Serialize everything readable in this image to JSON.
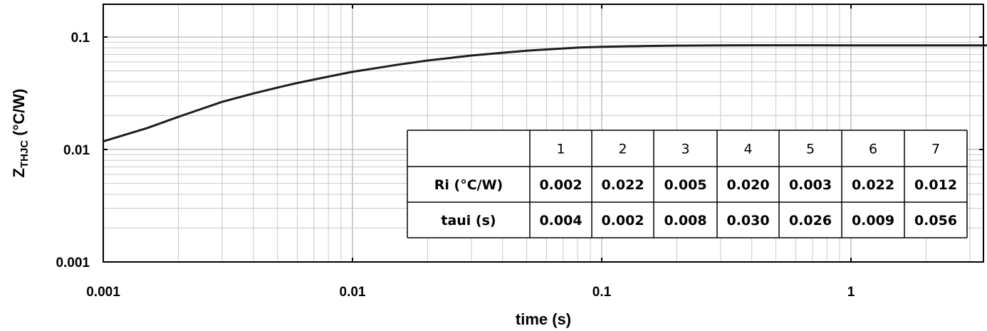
{
  "chart_data": {
    "type": "line",
    "x_scale": "log",
    "y_scale": "log",
    "xlabel": "time (s)",
    "ylabel": {
      "main": "Z",
      "subscript": "THJC",
      "unit": " (°C/W)"
    },
    "xlim": [
      0.001,
      4
    ],
    "ylim": [
      0.001,
      0.2
    ],
    "grid": true,
    "x_ticks": [
      {
        "value": 0.001,
        "label": "0.001"
      },
      {
        "value": 0.01,
        "label": "0.01"
      },
      {
        "value": 0.1,
        "label": "0.1"
      },
      {
        "value": 1,
        "label": "1"
      }
    ],
    "y_ticks": [
      {
        "value": 0.001,
        "label": "0.001"
      },
      {
        "value": 0.01,
        "label": "0.01"
      },
      {
        "value": 0.1,
        "label": "0.1"
      }
    ],
    "series": [
      {
        "x": [
          0.001,
          0.0015,
          0.002,
          0.003,
          0.004,
          0.005,
          0.006,
          0.008,
          0.01,
          0.015,
          0.02,
          0.03,
          0.04,
          0.05,
          0.06,
          0.08,
          0.1,
          0.15,
          0.2,
          0.3,
          0.4,
          0.5,
          1,
          2,
          4
        ],
        "y": [
          0.0118,
          0.0155,
          0.0195,
          0.0265,
          0.0315,
          0.0355,
          0.039,
          0.0445,
          0.049,
          0.0565,
          0.0618,
          0.0685,
          0.0725,
          0.0755,
          0.0775,
          0.0805,
          0.0818,
          0.0832,
          0.0838,
          0.0843,
          0.0845,
          0.0845,
          0.0843,
          0.0842,
          0.0842
        ]
      }
    ],
    "table": {
      "columns": [
        "",
        "1",
        "2",
        "3",
        "4",
        "5",
        "6",
        "7"
      ],
      "rows": [
        {
          "label": "Ri (°C/W)",
          "values": [
            "0.002",
            "0.022",
            "0.005",
            "0.020",
            "0.003",
            "0.022",
            "0.012"
          ]
        },
        {
          "label": "taui (s)",
          "values": [
            "0.004",
            "0.002",
            "0.008",
            "0.030",
            "0.026",
            "0.009",
            "0.056"
          ]
        }
      ]
    }
  }
}
